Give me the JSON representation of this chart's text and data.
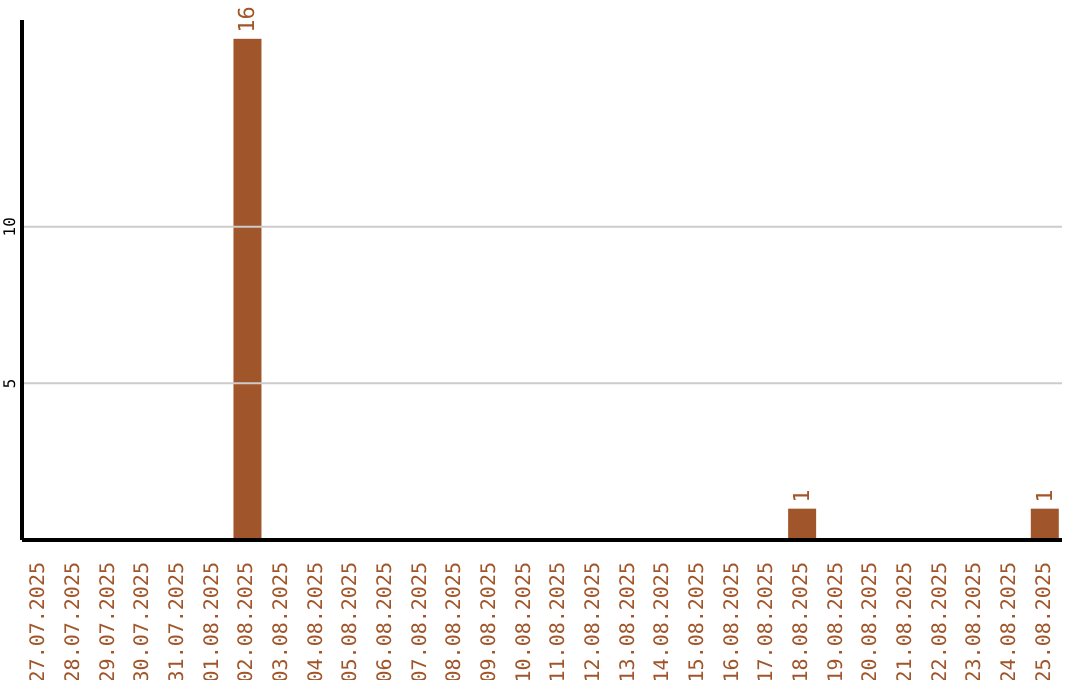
{
  "chart_data": {
    "type": "bar",
    "categories": [
      "27.07.2025",
      "28.07.2025",
      "29.07.2025",
      "30.07.2025",
      "31.07.2025",
      "01.08.2025",
      "02.08.2025",
      "03.08.2025",
      "04.08.2025",
      "05.08.2025",
      "06.08.2025",
      "07.08.2025",
      "08.08.2025",
      "09.08.2025",
      "10.08.2025",
      "11.08.2025",
      "12.08.2025",
      "13.08.2025",
      "14.08.2025",
      "15.08.2025",
      "16.08.2025",
      "17.08.2025",
      "18.08.2025",
      "19.08.2025",
      "20.08.2025",
      "21.08.2025",
      "22.08.2025",
      "23.08.2025",
      "24.08.2025",
      "25.08.2025"
    ],
    "values": [
      0,
      0,
      0,
      0,
      0,
      0,
      16,
      0,
      0,
      0,
      0,
      0,
      0,
      0,
      0,
      0,
      0,
      0,
      0,
      0,
      0,
      0,
      1,
      0,
      0,
      0,
      0,
      0,
      0,
      1
    ],
    "value_labels": [
      null,
      null,
      null,
      null,
      null,
      null,
      "16",
      null,
      null,
      null,
      null,
      null,
      null,
      null,
      null,
      null,
      null,
      null,
      null,
      null,
      null,
      null,
      "1",
      null,
      null,
      null,
      null,
      null,
      null,
      "1"
    ],
    "color": "#a0562a",
    "ylim": [
      0,
      16.6
    ],
    "yticks": [
      5,
      10
    ],
    "grid": "y"
  }
}
